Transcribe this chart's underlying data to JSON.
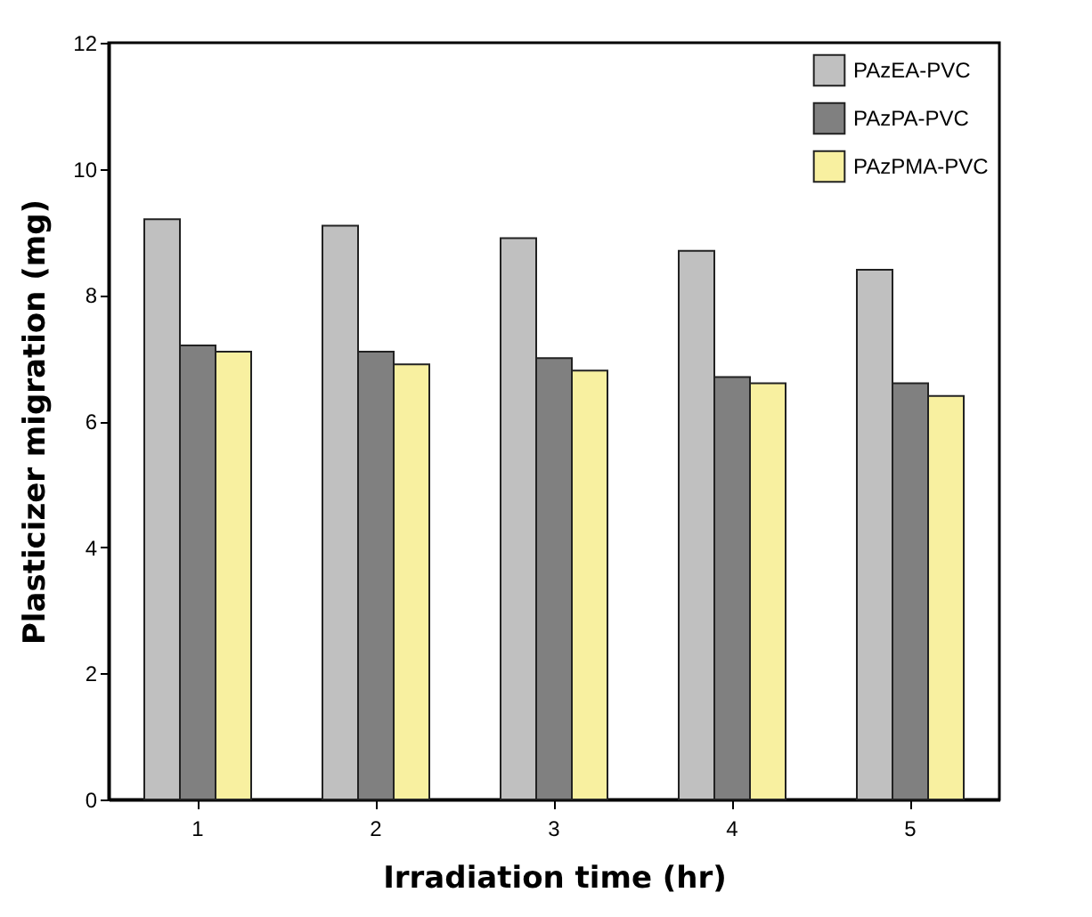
{
  "chart_data": {
    "type": "bar",
    "xlabel": "Irradiation time (hr)",
    "ylabel": "Plasticizer migration (mg)",
    "categories": [
      "1",
      "2",
      "3",
      "4",
      "5"
    ],
    "series": [
      {
        "name": "PAzEA-PVC",
        "color": "#c0c0c0",
        "values": [
          9.2,
          9.1,
          8.9,
          8.7,
          8.4
        ]
      },
      {
        "name": "PAzPA-PVC",
        "color": "#808080",
        "values": [
          7.2,
          7.1,
          7.0,
          6.7,
          6.6
        ]
      },
      {
        "name": "PAzPMA-PVC",
        "color": "#f8f0a0",
        "values": [
          7.1,
          6.9,
          6.8,
          6.6,
          6.4
        ]
      }
    ],
    "ylim": [
      0,
      12
    ],
    "yticks": [
      0,
      2,
      4,
      6,
      8,
      10,
      12
    ],
    "grid": false,
    "legend": "top right"
  }
}
